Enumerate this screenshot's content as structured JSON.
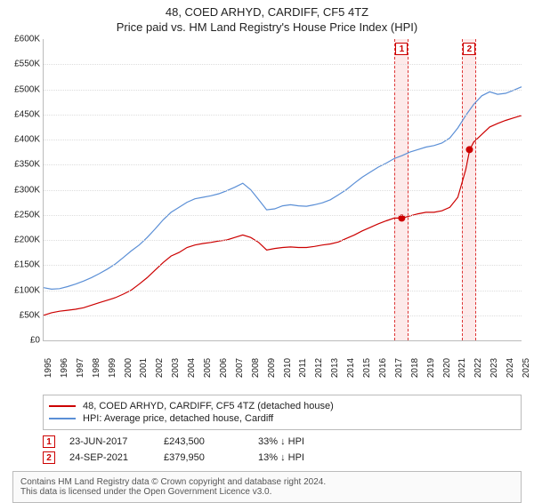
{
  "titles": {
    "line1": "48, COED ARHYD, CARDIFF, CF5 4TZ",
    "line2": "Price paid vs. HM Land Registry's House Price Index (HPI)"
  },
  "chart": {
    "type": "line",
    "x_range": [
      1995,
      2025
    ],
    "y_range": [
      0,
      600000
    ],
    "ytick_step": 50000,
    "ytick_prefix": "£",
    "ytick_suffix": "K",
    "xtick_step": 1,
    "background_color": "#ffffff",
    "grid_color": "#dddddd",
    "line_width": 1.2,
    "series": [
      {
        "name": "price_paid",
        "color": "#cc0000",
        "points": [
          [
            1995,
            50000
          ],
          [
            1995.5,
            55000
          ],
          [
            1996,
            58000
          ],
          [
            1996.5,
            60000
          ],
          [
            1997,
            62000
          ],
          [
            1997.5,
            65000
          ],
          [
            1998,
            70000
          ],
          [
            1998.5,
            75000
          ],
          [
            1999,
            80000
          ],
          [
            1999.5,
            85000
          ],
          [
            2000,
            92000
          ],
          [
            2000.5,
            100000
          ],
          [
            2001,
            112000
          ],
          [
            2001.5,
            125000
          ],
          [
            2002,
            140000
          ],
          [
            2002.5,
            155000
          ],
          [
            2003,
            168000
          ],
          [
            2003.5,
            175000
          ],
          [
            2004,
            185000
          ],
          [
            2004.5,
            190000
          ],
          [
            2005,
            193000
          ],
          [
            2005.5,
            195000
          ],
          [
            2006,
            198000
          ],
          [
            2006.5,
            200000
          ],
          [
            2007,
            205000
          ],
          [
            2007.5,
            210000
          ],
          [
            2008,
            205000
          ],
          [
            2008.5,
            195000
          ],
          [
            2009,
            180000
          ],
          [
            2009.5,
            183000
          ],
          [
            2010,
            185000
          ],
          [
            2010.5,
            186000
          ],
          [
            2011,
            185000
          ],
          [
            2011.5,
            185000
          ],
          [
            2012,
            187000
          ],
          [
            2012.5,
            190000
          ],
          [
            2013,
            192000
          ],
          [
            2013.5,
            196000
          ],
          [
            2014,
            203000
          ],
          [
            2014.5,
            210000
          ],
          [
            2015,
            218000
          ],
          [
            2015.5,
            225000
          ],
          [
            2016,
            232000
          ],
          [
            2016.5,
            238000
          ],
          [
            2017,
            243500
          ],
          [
            2017.5,
            243500
          ],
          [
            2018,
            248000
          ],
          [
            2018.5,
            252000
          ],
          [
            2019,
            255000
          ],
          [
            2019.5,
            255000
          ],
          [
            2020,
            258000
          ],
          [
            2020.5,
            265000
          ],
          [
            2021,
            285000
          ],
          [
            2021.5,
            340000
          ],
          [
            2021.75,
            379950
          ],
          [
            2022,
            395000
          ],
          [
            2022.5,
            410000
          ],
          [
            2023,
            425000
          ],
          [
            2023.5,
            432000
          ],
          [
            2024,
            438000
          ],
          [
            2024.5,
            443000
          ],
          [
            2025,
            448000
          ]
        ]
      },
      {
        "name": "hpi",
        "color": "#5b8fd6",
        "points": [
          [
            1995,
            105000
          ],
          [
            1995.5,
            102000
          ],
          [
            1996,
            103000
          ],
          [
            1996.5,
            107000
          ],
          [
            1997,
            112000
          ],
          [
            1997.5,
            118000
          ],
          [
            1998,
            125000
          ],
          [
            1998.5,
            133000
          ],
          [
            1999,
            142000
          ],
          [
            1999.5,
            152000
          ],
          [
            2000,
            165000
          ],
          [
            2000.5,
            178000
          ],
          [
            2001,
            190000
          ],
          [
            2001.5,
            205000
          ],
          [
            2002,
            222000
          ],
          [
            2002.5,
            240000
          ],
          [
            2003,
            255000
          ],
          [
            2003.5,
            265000
          ],
          [
            2004,
            275000
          ],
          [
            2004.5,
            282000
          ],
          [
            2005,
            285000
          ],
          [
            2005.5,
            288000
          ],
          [
            2006,
            292000
          ],
          [
            2006.5,
            298000
          ],
          [
            2007,
            305000
          ],
          [
            2007.5,
            313000
          ],
          [
            2008,
            300000
          ],
          [
            2008.5,
            280000
          ],
          [
            2009,
            260000
          ],
          [
            2009.5,
            262000
          ],
          [
            2010,
            268000
          ],
          [
            2010.5,
            270000
          ],
          [
            2011,
            268000
          ],
          [
            2011.5,
            267000
          ],
          [
            2012,
            270000
          ],
          [
            2012.5,
            274000
          ],
          [
            2013,
            280000
          ],
          [
            2013.5,
            290000
          ],
          [
            2014,
            300000
          ],
          [
            2014.5,
            313000
          ],
          [
            2015,
            325000
          ],
          [
            2015.5,
            335000
          ],
          [
            2016,
            345000
          ],
          [
            2016.5,
            353000
          ],
          [
            2017,
            362000
          ],
          [
            2017.5,
            368000
          ],
          [
            2018,
            375000
          ],
          [
            2018.5,
            380000
          ],
          [
            2019,
            385000
          ],
          [
            2019.5,
            388000
          ],
          [
            2020,
            393000
          ],
          [
            2020.5,
            403000
          ],
          [
            2021,
            423000
          ],
          [
            2021.5,
            448000
          ],
          [
            2022,
            470000
          ],
          [
            2022.5,
            487000
          ],
          [
            2023,
            495000
          ],
          [
            2023.5,
            490000
          ],
          [
            2024,
            492000
          ],
          [
            2024.5,
            498000
          ],
          [
            2025,
            505000
          ]
        ]
      }
    ],
    "markers": [
      {
        "id": "1",
        "x": 2017.48,
        "price": 243500
      },
      {
        "id": "2",
        "x": 2021.73,
        "price": 379950
      }
    ],
    "marker_dot_color": "#cc0000",
    "marker_box_border": "#cc0000",
    "shade_color": "#fdeaea"
  },
  "legend": {
    "items": [
      {
        "color": "#cc0000",
        "label": "48, COED ARHYD, CARDIFF, CF5 4TZ (detached house)"
      },
      {
        "color": "#5b8fd6",
        "label": "HPI: Average price, detached house, Cardiff"
      }
    ]
  },
  "sales": [
    {
      "id": "1",
      "date": "23-JUN-2017",
      "price": "£243,500",
      "note": "33% ↓ HPI"
    },
    {
      "id": "2",
      "date": "24-SEP-2021",
      "price": "£379,950",
      "note": "13% ↓ HPI"
    }
  ],
  "licence": {
    "line1": "Contains HM Land Registry data © Crown copyright and database right 2024.",
    "line2": "This data is licensed under the Open Government Licence v3.0."
  }
}
